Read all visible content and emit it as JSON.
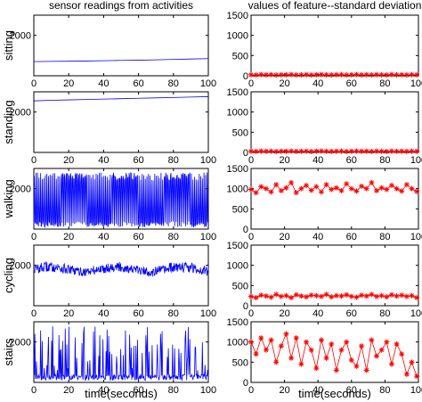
{
  "figure": {
    "left_title": "sensor readings from activities",
    "right_title": "values of feature--standard deviation",
    "xlabel": "time(seconds)"
  },
  "chart_data": [
    {
      "type": "line",
      "column": "left",
      "panel": "sitting",
      "ylabel": "sitting",
      "xlim": [
        0,
        100
      ],
      "ylim": [
        0,
        3000
      ],
      "xticks": [
        "0",
        "20",
        "40",
        "60",
        "80",
        "100"
      ],
      "yticks": [
        "2000"
      ],
      "series": [
        {
          "color": "#0000ff",
          "marker": "none",
          "x": [
            0,
            10,
            20,
            30,
            40,
            50,
            60,
            70,
            80,
            90,
            100
          ],
          "y": [
            700,
            710,
            720,
            730,
            745,
            760,
            770,
            790,
            810,
            830,
            850
          ]
        }
      ]
    },
    {
      "type": "line",
      "column": "left",
      "panel": "standing",
      "ylabel": "standing",
      "xlim": [
        0,
        100
      ],
      "ylim": [
        0,
        3000
      ],
      "xticks": [
        "0",
        "20",
        "40",
        "60",
        "80",
        "100"
      ],
      "yticks": [
        "2000"
      ],
      "series": [
        {
          "color": "#0000ff",
          "marker": "none",
          "x": [
            0,
            10,
            20,
            30,
            40,
            50,
            60,
            70,
            80,
            90,
            100
          ],
          "y": [
            2550,
            2580,
            2600,
            2620,
            2640,
            2660,
            2680,
            2700,
            2720,
            2740,
            2760
          ]
        }
      ]
    },
    {
      "type": "line",
      "column": "left",
      "panel": "walking",
      "ylabel": "walking",
      "xlim": [
        0,
        100
      ],
      "ylim": [
        0,
        3000
      ],
      "xticks": [
        "0",
        "20",
        "40",
        "60",
        "80",
        "100"
      ],
      "yticks": [
        "2000"
      ],
      "signal": {
        "kind": "oscillating",
        "low": 100,
        "high": 2800,
        "cycles_per_second": 1.1
      },
      "series": [
        {
          "color": "#0000ff",
          "marker": "none"
        }
      ]
    },
    {
      "type": "line",
      "column": "left",
      "panel": "cycling",
      "ylabel": "cycling",
      "xlim": [
        0,
        100
      ],
      "ylim": [
        0,
        3000
      ],
      "xticks": [
        "0",
        "20",
        "40",
        "60",
        "80",
        "100"
      ],
      "yticks": [
        "2000"
      ],
      "signal": {
        "kind": "noisy",
        "center": 1800,
        "spread": 250
      },
      "series": [
        {
          "color": "#0000ff",
          "marker": "none"
        }
      ]
    },
    {
      "type": "line",
      "column": "left",
      "panel": "stairs",
      "ylabel": "stairs",
      "xlim": [
        0,
        100
      ],
      "ylim": [
        0,
        3000
      ],
      "xticks": [
        "0",
        "20",
        "40",
        "60",
        "80",
        "100"
      ],
      "yticks": [
        "2000"
      ],
      "signal": {
        "kind": "spiky",
        "low": 100,
        "high": 2800
      },
      "series": [
        {
          "color": "#0000ff",
          "marker": "none"
        }
      ]
    },
    {
      "type": "line",
      "column": "right",
      "panel": "sitting",
      "xlim": [
        0,
        100
      ],
      "ylim": [
        0,
        1500
      ],
      "xticks": [
        "0",
        "20",
        "40",
        "60",
        "80",
        "100"
      ],
      "yticks": [
        "0",
        "500",
        "1000",
        "1500"
      ],
      "series": [
        {
          "color": "#ff0000",
          "marker": "star",
          "x": [
            0,
            3,
            6,
            9,
            12,
            15,
            18,
            21,
            24,
            27,
            30,
            33,
            36,
            39,
            42,
            45,
            48,
            51,
            54,
            57,
            60,
            63,
            66,
            69,
            72,
            75,
            78,
            81,
            84,
            87,
            90,
            93,
            96,
            99
          ],
          "y": [
            25,
            20,
            30,
            22,
            28,
            18,
            26,
            24,
            30,
            20,
            22,
            28,
            18,
            25,
            30,
            22,
            20,
            26,
            28,
            18,
            24,
            30,
            22,
            26,
            20,
            28,
            24,
            18,
            30,
            22,
            26,
            20,
            28,
            24
          ]
        }
      ]
    },
    {
      "type": "line",
      "column": "right",
      "panel": "standing",
      "xlim": [
        0,
        100
      ],
      "ylim": [
        0,
        1500
      ],
      "xticks": [
        "0",
        "20",
        "40",
        "60",
        "80",
        "100"
      ],
      "yticks": [
        "0",
        "500",
        "1000",
        "1500"
      ],
      "series": [
        {
          "color": "#ff0000",
          "marker": "star",
          "x": [
            0,
            3,
            6,
            9,
            12,
            15,
            18,
            21,
            24,
            27,
            30,
            33,
            36,
            39,
            42,
            45,
            48,
            51,
            54,
            57,
            60,
            63,
            66,
            69,
            72,
            75,
            78,
            81,
            84,
            87,
            90,
            93,
            96,
            99
          ],
          "y": [
            30,
            25,
            35,
            28,
            32,
            22,
            30,
            28,
            35,
            25,
            28,
            32,
            22,
            30,
            35,
            28,
            25,
            30,
            32,
            22,
            28,
            35,
            28,
            30,
            25,
            32,
            28,
            22,
            35,
            28,
            30,
            25,
            32,
            28
          ]
        }
      ]
    },
    {
      "type": "line",
      "column": "right",
      "panel": "walking",
      "xlim": [
        0,
        100
      ],
      "ylim": [
        0,
        1500
      ],
      "xticks": [
        "0",
        "20",
        "40",
        "60",
        "80",
        "100"
      ],
      "yticks": [
        "0",
        "500",
        "1000",
        "1500"
      ],
      "series": [
        {
          "color": "#ff0000",
          "marker": "star",
          "x": [
            0,
            3,
            6,
            9,
            12,
            15,
            18,
            21,
            24,
            27,
            30,
            33,
            36,
            39,
            42,
            45,
            48,
            51,
            54,
            57,
            60,
            63,
            66,
            69,
            72,
            75,
            78,
            81,
            84,
            87,
            90,
            93,
            96,
            99
          ],
          "y": [
            980,
            900,
            1050,
            1000,
            920,
            1100,
            950,
            1020,
            1150,
            900,
            1000,
            1080,
            960,
            1050,
            920,
            1100,
            980,
            1020,
            950,
            1120,
            1000,
            940,
            1060,
            1000,
            1150,
            950,
            1020,
            980,
            1080,
            1000,
            940,
            1100,
            1000,
            930
          ]
        }
      ]
    },
    {
      "type": "line",
      "column": "right",
      "panel": "cycling",
      "xlim": [
        0,
        100
      ],
      "ylim": [
        0,
        1500
      ],
      "xticks": [
        "0",
        "20",
        "40",
        "60",
        "80",
        "100"
      ],
      "yticks": [
        "0",
        "500",
        "1000",
        "1500"
      ],
      "series": [
        {
          "color": "#ff0000",
          "marker": "star",
          "x": [
            0,
            3,
            6,
            9,
            12,
            15,
            18,
            21,
            24,
            27,
            30,
            33,
            36,
            39,
            42,
            45,
            48,
            51,
            54,
            57,
            60,
            63,
            66,
            69,
            72,
            75,
            78,
            81,
            84,
            87,
            90,
            93,
            96,
            99
          ],
          "y": [
            230,
            200,
            260,
            240,
            210,
            280,
            230,
            250,
            200,
            270,
            240,
            220,
            260,
            250,
            230,
            280,
            220,
            250,
            240,
            270,
            230,
            210,
            260,
            240,
            280,
            230,
            250,
            220,
            270,
            240,
            260,
            230,
            250,
            200
          ]
        }
      ]
    },
    {
      "type": "line",
      "column": "right",
      "panel": "stairs",
      "xlim": [
        0,
        100
      ],
      "ylim": [
        0,
        1500
      ],
      "xticks": [
        "0",
        "20",
        "40",
        "60",
        "80",
        "100"
      ],
      "yticks": [
        "0",
        "500",
        "1000",
        "1500"
      ],
      "series": [
        {
          "color": "#ff0000",
          "marker": "star",
          "x": [
            0,
            3,
            6,
            9,
            12,
            15,
            18,
            21,
            24,
            27,
            30,
            33,
            36,
            39,
            42,
            45,
            48,
            51,
            54,
            57,
            60,
            63,
            66,
            69,
            72,
            75,
            78,
            81,
            84,
            87,
            90,
            93,
            96,
            99
          ],
          "y": [
            1000,
            700,
            1100,
            800,
            1050,
            500,
            900,
            1200,
            600,
            1100,
            450,
            1000,
            800,
            350,
            1050,
            600,
            950,
            300,
            800,
            1000,
            550,
            400,
            900,
            300,
            1050,
            650,
            800,
            1000,
            450,
            950,
            700,
            200,
            500,
            150
          ]
        }
      ]
    }
  ]
}
